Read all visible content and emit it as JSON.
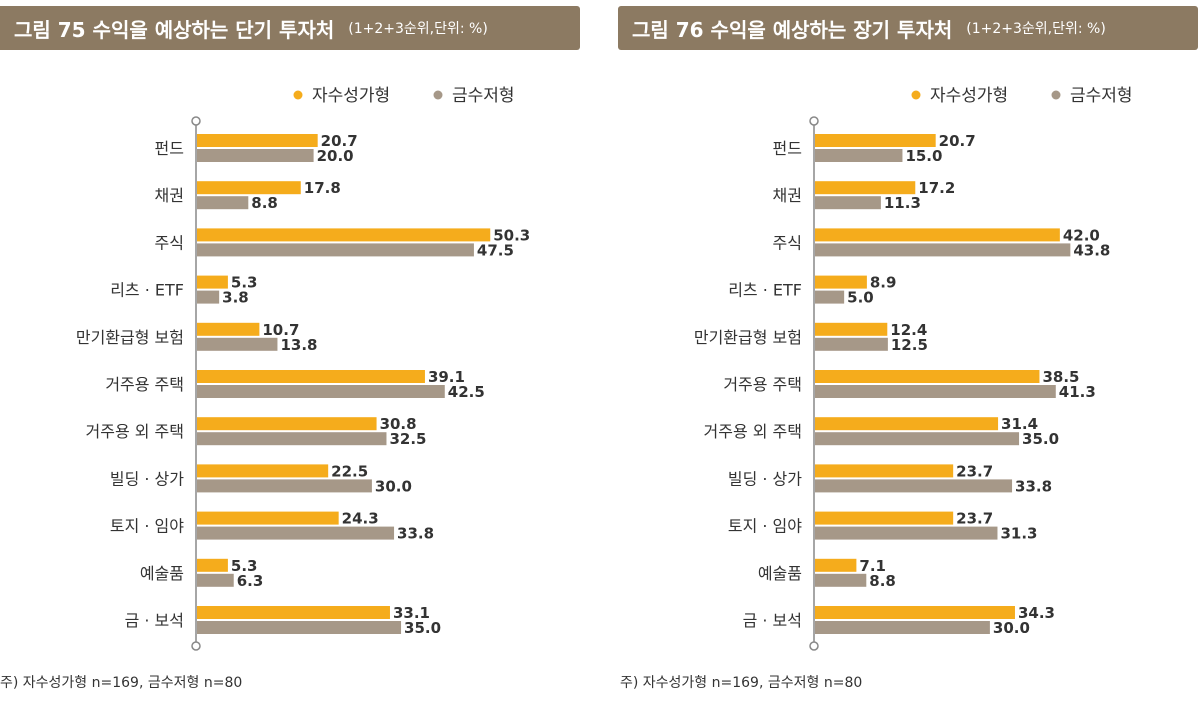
{
  "legend_colors": {
    "a": "#f5ac1c",
    "b": "#a69888"
  },
  "chart_data": [
    {
      "type": "bar",
      "orientation": "horizontal",
      "title": "그림 75  수익을 예상하는 단기 투자처",
      "subtitle": "(1+2+3순위,단위: %)",
      "categories": [
        "펀드",
        "채권",
        "주식",
        "리츠 · ETF",
        "만기환급형 보험",
        "거주용 주택",
        "거주용 외 주택",
        "빌딩 · 상가",
        "토지 · 임야",
        "예술품",
        "금 · 보석"
      ],
      "series": [
        {
          "name": "자수성가형",
          "values": [
            20.7,
            17.8,
            50.3,
            5.3,
            10.7,
            39.1,
            30.8,
            22.5,
            24.3,
            5.3,
            33.1
          ]
        },
        {
          "name": "금수저형",
          "values": [
            20.0,
            8.8,
            47.5,
            3.8,
            13.8,
            42.5,
            32.5,
            30.0,
            33.8,
            6.3,
            35.0
          ]
        }
      ],
      "value_labels": [
        [
          "20.7",
          "17.8",
          "50.3",
          "5.3",
          "10.7",
          "39.1",
          "30.8",
          "22.5",
          "24.3",
          "5.3",
          "33.1"
        ],
        [
          "20.0",
          "8.8",
          "47.5",
          "3.8",
          "13.8",
          "42.5",
          "32.5",
          "30.0",
          "33.8",
          "6.3",
          "35.0"
        ]
      ],
      "xlim": [
        0,
        52
      ],
      "legend_position": "top-right",
      "grid": false,
      "note": "주) 자수성가형 n=169, 금수저형 n=80"
    },
    {
      "type": "bar",
      "orientation": "horizontal",
      "title": "그림 76  수익을 예상하는 장기 투자처",
      "subtitle": "(1+2+3순위,단위: %)",
      "categories": [
        "펀드",
        "채권",
        "주식",
        "리츠 · ETF",
        "만기환급형 보험",
        "거주용 주택",
        "거주용 외 주택",
        "빌딩 · 상가",
        "토지 · 임야",
        "예술품",
        "금 · 보석"
      ],
      "series": [
        {
          "name": "자수성가형",
          "values": [
            20.7,
            17.2,
            42.0,
            8.9,
            12.4,
            38.5,
            31.4,
            23.7,
            23.7,
            7.1,
            34.3
          ]
        },
        {
          "name": "금수저형",
          "values": [
            15.0,
            11.3,
            43.8,
            5.0,
            12.5,
            41.3,
            35.0,
            33.8,
            31.3,
            8.8,
            30.0
          ]
        }
      ],
      "value_labels": [
        [
          "20.7",
          "17.2",
          "42.0",
          "8.9",
          "12.4",
          "38.5",
          "31.4",
          "23.7",
          "23.7",
          "7.1",
          "34.3"
        ],
        [
          "15.0",
          "11.3",
          "43.8",
          "5.0",
          "12.5",
          "41.3",
          "35.0",
          "33.8",
          "31.3",
          "8.8",
          "30.0"
        ]
      ],
      "xlim": [
        0,
        52
      ],
      "legend_position": "top-right",
      "grid": false,
      "note": "주) 자수성가형 n=169, 금수저형 n=80"
    }
  ]
}
